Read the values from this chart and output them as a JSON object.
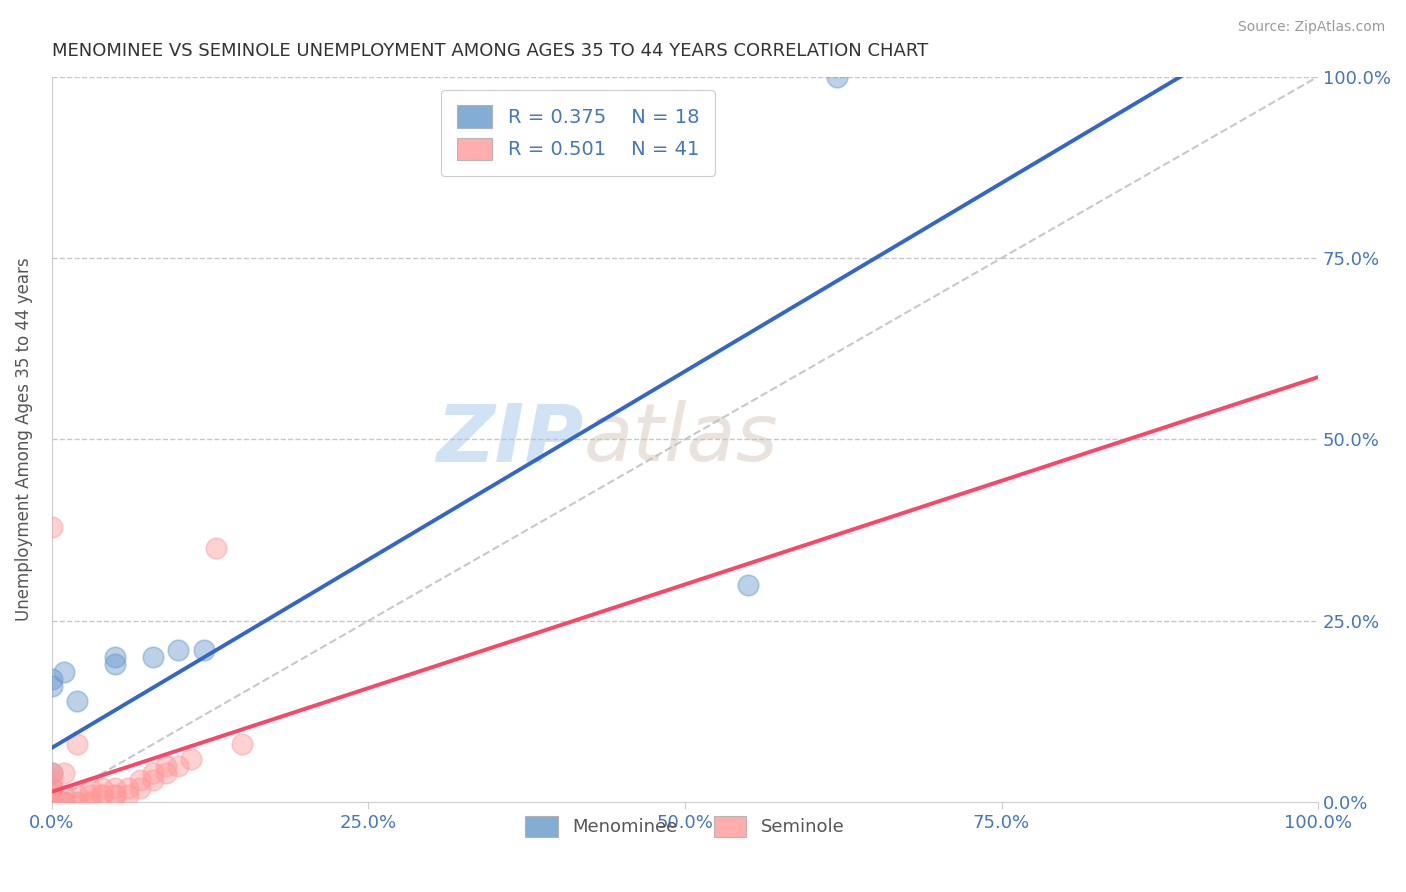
{
  "title": "MENOMINEE VS SEMINOLE UNEMPLOYMENT AMONG AGES 35 TO 44 YEARS CORRELATION CHART",
  "source": "Source: ZipAtlas.com",
  "ylabel": "Unemployment Among Ages 35 to 44 years",
  "xlim": [
    0.0,
    1.0
  ],
  "ylim": [
    0.0,
    1.0
  ],
  "xticks": [
    0.0,
    0.25,
    0.5,
    0.75,
    1.0
  ],
  "yticks": [
    0.0,
    0.25,
    0.5,
    0.75,
    1.0
  ],
  "xtick_labels": [
    "0.0%",
    "25.0%",
    "50.0%",
    "75.0%",
    "100.0%"
  ],
  "ytick_labels": [
    "0.0%",
    "25.0%",
    "50.0%",
    "75.0%",
    "100.0%"
  ],
  "menominee_R": 0.375,
  "menominee_N": 18,
  "seminole_R": 0.501,
  "seminole_N": 41,
  "menominee_color": "#6699CC",
  "seminole_color": "#FF9999",
  "menominee_line_color": "#3366CC",
  "seminole_line_color": "#FF4466",
  "diagonal_color": "#BBBBBB",
  "title_color": "#333333",
  "source_color": "#999999",
  "axis_label_color": "#555555",
  "tick_color": "#4477BB",
  "background_color": "#FFFFFF",
  "menominee_x": [
    0.0,
    0.0,
    0.0,
    0.0,
    0.0,
    0.0,
    0.0,
    0.0,
    0.01,
    0.01,
    0.02,
    0.05,
    0.05,
    0.08,
    0.1,
    0.12,
    0.55,
    0.62
  ],
  "menominee_y": [
    0.0,
    0.0,
    0.0,
    0.0,
    0.02,
    0.04,
    0.16,
    0.17,
    0.0,
    0.18,
    0.14,
    0.19,
    0.2,
    0.2,
    0.21,
    0.21,
    0.3,
    1.0
  ],
  "seminole_x": [
    0.0,
    0.0,
    0.0,
    0.0,
    0.0,
    0.0,
    0.0,
    0.0,
    0.0,
    0.0,
    0.0,
    0.01,
    0.01,
    0.01,
    0.01,
    0.02,
    0.02,
    0.02,
    0.02,
    0.03,
    0.03,
    0.03,
    0.03,
    0.04,
    0.04,
    0.04,
    0.05,
    0.05,
    0.05,
    0.06,
    0.06,
    0.07,
    0.07,
    0.08,
    0.08,
    0.09,
    0.09,
    0.1,
    0.11,
    0.13,
    0.15
  ],
  "seminole_y": [
    0.0,
    0.0,
    0.0,
    0.0,
    0.0,
    0.0,
    0.01,
    0.02,
    0.03,
    0.04,
    0.38,
    0.0,
    0.0,
    0.01,
    0.04,
    0.0,
    0.0,
    0.01,
    0.08,
    0.0,
    0.0,
    0.01,
    0.02,
    0.01,
    0.01,
    0.02,
    0.01,
    0.01,
    0.02,
    0.01,
    0.02,
    0.02,
    0.03,
    0.03,
    0.04,
    0.04,
    0.05,
    0.05,
    0.06,
    0.35,
    0.08
  ],
  "watermark_top": "ZIP",
  "watermark_bot": "atlas",
  "watermark_color_top": "#AACCEE",
  "watermark_color_bot": "#CCBBAA"
}
